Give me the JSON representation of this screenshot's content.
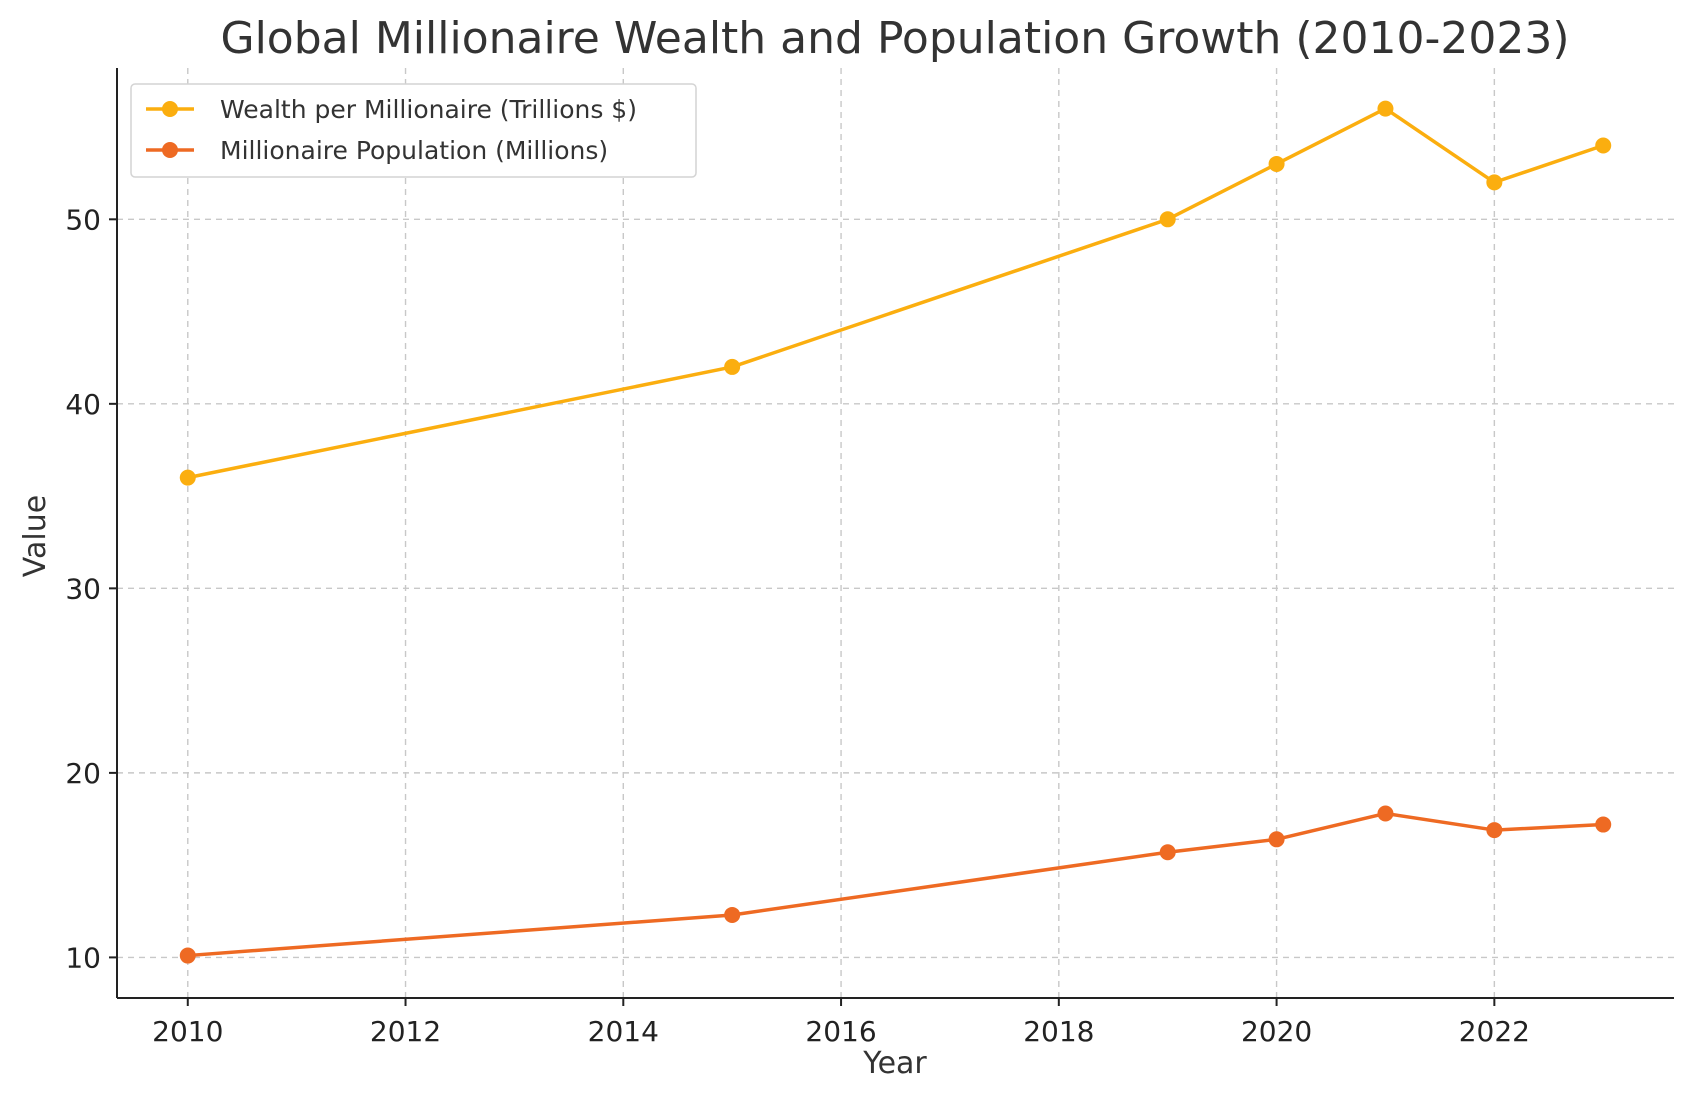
{
  "chart_data": {
    "type": "line",
    "title": "Global Millionaire Wealth and Population Growth (2010-2023)",
    "xlabel": "Year",
    "ylabel": "Value",
    "x": [
      2010,
      2015,
      2019,
      2020,
      2021,
      2022,
      2023
    ],
    "xlim": [
      2009.35,
      2023.65
    ],
    "ylim": [
      7.8,
      58.2
    ],
    "xticks": [
      2010,
      2012,
      2014,
      2016,
      2018,
      2020,
      2022
    ],
    "yticks": [
      10,
      20,
      30,
      40,
      50
    ],
    "grid": true,
    "legend_position": "top-left",
    "series": [
      {
        "name": "Wealth per Millionaire (Trillions $)",
        "color": "#FBAE0F",
        "marker": "circle",
        "values": [
          36.0,
          42.0,
          50.0,
          53.0,
          56.0,
          52.0,
          54.0
        ]
      },
      {
        "name": "Millionaire Population (Millions)",
        "color": "#EE6A23",
        "marker": "circle",
        "values": [
          10.1,
          12.3,
          15.7,
          16.4,
          17.8,
          16.9,
          17.2
        ]
      }
    ]
  }
}
